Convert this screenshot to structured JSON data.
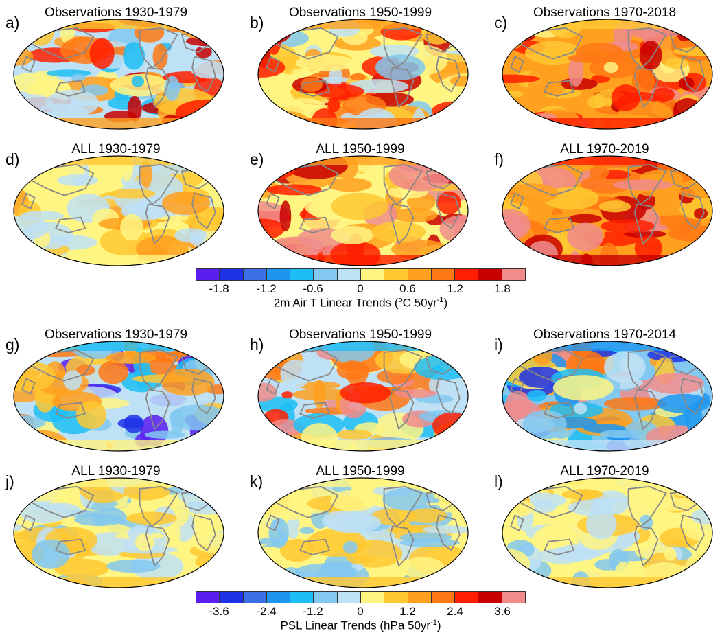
{
  "colors": {
    "scale": [
      "#5a1ef0",
      "#1e32e6",
      "#3c6ee6",
      "#1e96f0",
      "#1ebef5",
      "#82c8f0",
      "#bee1f5",
      "#fff582",
      "#ffc832",
      "#ffa01e",
      "#ff7814",
      "#ff1e00",
      "#c80000",
      "#f08c8c"
    ],
    "land_outline": "#888888",
    "map_border": "#000000"
  },
  "temperature_panels": [
    {
      "letter": "a)",
      "title": "Observations 1930-1979",
      "palette": [
        6,
        7,
        8,
        9,
        10,
        11,
        12,
        5,
        4
      ],
      "seed": 11
    },
    {
      "letter": "b)",
      "title": "Observations 1950-1999",
      "palette": [
        7,
        8,
        9,
        10,
        11,
        12,
        6,
        5
      ],
      "seed": 23
    },
    {
      "letter": "c)",
      "title": "Observations 1970-2018",
      "palette": [
        9,
        10,
        8,
        11,
        12,
        13,
        7
      ],
      "seed": 37
    },
    {
      "letter": "d)",
      "title": "ALL 1930-1979",
      "palette": [
        7,
        6,
        8,
        7,
        6,
        9
      ],
      "seed": 41
    },
    {
      "letter": "e)",
      "title": "ALL 1950-1999",
      "palette": [
        7,
        8,
        9,
        11,
        12,
        13
      ],
      "seed": 53
    },
    {
      "letter": "f)",
      "title": "ALL 1970-2019",
      "palette": [
        9,
        10,
        11,
        12,
        13,
        8
      ],
      "seed": 67
    }
  ],
  "pressure_panels": [
    {
      "letter": "g)",
      "title": "Observations 1930-1979",
      "palette": [
        6,
        5,
        4,
        7,
        8,
        9,
        10,
        1,
        0
      ],
      "seed": 71
    },
    {
      "letter": "h)",
      "title": "Observations 1950-1999",
      "palette": [
        6,
        5,
        4,
        7,
        8,
        9,
        10,
        11,
        13
      ],
      "seed": 83
    },
    {
      "letter": "i)",
      "title": "Observations 1970-2014",
      "palette": [
        5,
        4,
        3,
        6,
        7,
        8,
        9,
        10,
        13,
        1
      ],
      "seed": 97
    },
    {
      "letter": "j)",
      "title": "ALL 1930-1979",
      "palette": [
        7,
        6,
        7,
        8,
        5
      ],
      "seed": 101
    },
    {
      "letter": "k)",
      "title": "ALL 1950-1999",
      "palette": [
        7,
        6,
        7,
        8,
        5
      ],
      "seed": 113
    },
    {
      "letter": "l)",
      "title": "ALL 1970-2019",
      "palette": [
        7,
        6,
        7,
        8,
        5
      ],
      "seed": 127
    }
  ],
  "temperature_colorbar": {
    "ticks": [
      "-1.8",
      "-1.2",
      "-0.6",
      "0",
      "0.6",
      "1.2",
      "1.8"
    ],
    "title_main": "2m Air T Linear Trends (",
    "title_deg": "o",
    "title_unit": "C 50yr",
    "title_exp": "-1",
    "title_close": ")"
  },
  "pressure_colorbar": {
    "ticks": [
      "-3.6",
      "-2.4",
      "-1.2",
      "0",
      "1.2",
      "2.4",
      "3.6"
    ],
    "title_main": "PSL Linear Trends (hPa 50yr",
    "title_exp": "-1",
    "title_close": ")"
  }
}
